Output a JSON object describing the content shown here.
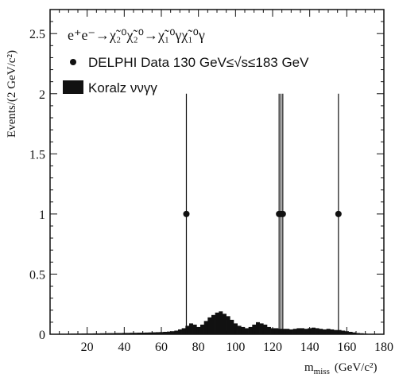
{
  "chart_data": {
    "type": "bar",
    "process_label": "e⁺e⁻→χ̃₂⁰χ̃₂⁰→χ̃₁⁰γχ̃₁⁰γ",
    "ylabel": "Events/(2 GeV/c²)",
    "xlabel_main": "m",
    "xlabel_sub": "miss",
    "xlabel_unit": "(GeV/c²)",
    "xlim": [
      0,
      180
    ],
    "ylim": [
      0,
      2.7
    ],
    "xticks": [
      20,
      40,
      60,
      80,
      100,
      120,
      140,
      160,
      180
    ],
    "xtick_labels": [
      "20",
      "40",
      "60",
      "80",
      "100",
      "120",
      "140",
      "160",
      "180"
    ],
    "yticks": [
      0,
      0.5,
      1,
      1.5,
      2,
      2.5
    ],
    "ytick_labels": [
      "0",
      "0.5",
      "1",
      "1.5",
      "2",
      "2.5"
    ],
    "grid": false,
    "legend_placement": "top-left",
    "legend": [
      {
        "marker": "dot",
        "label": "DELPHI Data 130 GeV≤√s≤183 GeV"
      },
      {
        "marker": "filled-box",
        "label": "Koralz ννγγ"
      }
    ],
    "series": [
      {
        "name": "DELPHI Data 130 GeV≤√s≤183 GeV",
        "kind": "points",
        "x": [
          73.5,
          123.5,
          124.5,
          125.5,
          155.5
        ],
        "y": [
          1,
          1,
          1,
          1,
          1
        ],
        "yerr_up": [
          1.0,
          1.0,
          1.0,
          1.0,
          1.0
        ],
        "yerr_down": [
          1.0,
          1.0,
          1.0,
          1.0,
          1.0
        ]
      },
      {
        "name": "Koralz ννγγ",
        "kind": "histogram",
        "bin_width": 2,
        "x": [
          2,
          4,
          6,
          8,
          10,
          12,
          14,
          16,
          18,
          20,
          22,
          24,
          26,
          28,
          30,
          32,
          34,
          36,
          38,
          40,
          42,
          44,
          46,
          48,
          50,
          52,
          54,
          56,
          58,
          60,
          62,
          64,
          66,
          68,
          70,
          72,
          74,
          76,
          78,
          80,
          82,
          84,
          86,
          88,
          90,
          92,
          94,
          96,
          98,
          100,
          102,
          104,
          106,
          108,
          110,
          112,
          114,
          116,
          118,
          120,
          122,
          124,
          126,
          128,
          130,
          132,
          134,
          136,
          138,
          140,
          142,
          144,
          146,
          148,
          150,
          152,
          154,
          156,
          158,
          160,
          162,
          164,
          166,
          168,
          170,
          172
        ],
        "values": [
          0.003,
          0.003,
          0.004,
          0.004,
          0.004,
          0.005,
          0.005,
          0.005,
          0.006,
          0.006,
          0.006,
          0.007,
          0.007,
          0.008,
          0.008,
          0.009,
          0.009,
          0.01,
          0.01,
          0.011,
          0.011,
          0.012,
          0.012,
          0.013,
          0.013,
          0.014,
          0.015,
          0.016,
          0.017,
          0.018,
          0.02,
          0.022,
          0.025,
          0.03,
          0.04,
          0.05,
          0.07,
          0.09,
          0.08,
          0.06,
          0.08,
          0.11,
          0.14,
          0.16,
          0.18,
          0.19,
          0.17,
          0.15,
          0.12,
          0.09,
          0.07,
          0.06,
          0.05,
          0.06,
          0.08,
          0.1,
          0.09,
          0.08,
          0.06,
          0.05,
          0.05,
          0.045,
          0.045,
          0.045,
          0.04,
          0.045,
          0.05,
          0.05,
          0.045,
          0.05,
          0.055,
          0.05,
          0.045,
          0.04,
          0.045,
          0.04,
          0.035,
          0.035,
          0.03,
          0.025,
          0.02,
          0.015,
          0.01,
          0.008,
          0.005,
          0.003
        ]
      }
    ]
  }
}
